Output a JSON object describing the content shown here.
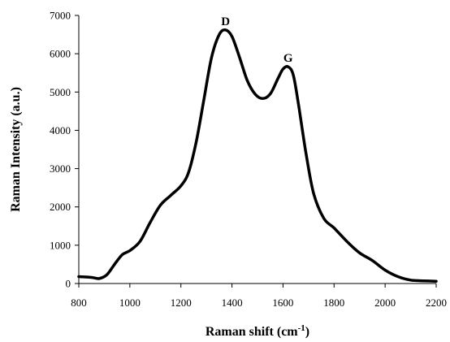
{
  "chart_data": {
    "type": "line",
    "title": "",
    "xlabel": "Raman shift (cm",
    "xlabel_sup": "-1",
    "xlabel_end": ")",
    "ylabel": "Raman Intensity (a.u.)",
    "xlim": [
      800,
      2200
    ],
    "ylim": [
      0,
      7000
    ],
    "grid": false,
    "legend": "none",
    "line_color": "#000000",
    "x_ticks": [
      800,
      1000,
      1200,
      1400,
      1600,
      1800,
      2000,
      2200
    ],
    "y_ticks": [
      0,
      1000,
      2000,
      3000,
      4000,
      5000,
      6000,
      7000
    ],
    "annotations": [
      {
        "text": "D",
        "x": 1375,
        "y": 6620
      },
      {
        "text": "G",
        "x": 1620,
        "y": 5660
      }
    ],
    "series": [
      {
        "x": [
          800,
          850,
          880,
          910,
          940,
          970,
          1000,
          1040,
          1080,
          1120,
          1160,
          1200,
          1230,
          1260,
          1290,
          1320,
          1350,
          1375,
          1400,
          1430,
          1460,
          1490,
          1520,
          1550,
          1580,
          1600,
          1620,
          1640,
          1660,
          1690,
          1720,
          1760,
          1800,
          1850,
          1900,
          1950,
          2000,
          2050,
          2100,
          2150,
          2200
        ],
        "y": [
          180,
          160,
          130,
          230,
          500,
          750,
          860,
          1100,
          1600,
          2050,
          2300,
          2550,
          2900,
          3700,
          4800,
          5900,
          6500,
          6620,
          6450,
          5900,
          5300,
          4950,
          4830,
          4950,
          5350,
          5600,
          5660,
          5450,
          4700,
          3400,
          2350,
          1700,
          1450,
          1100,
          800,
          600,
          350,
          180,
          90,
          70,
          60
        ]
      }
    ]
  }
}
